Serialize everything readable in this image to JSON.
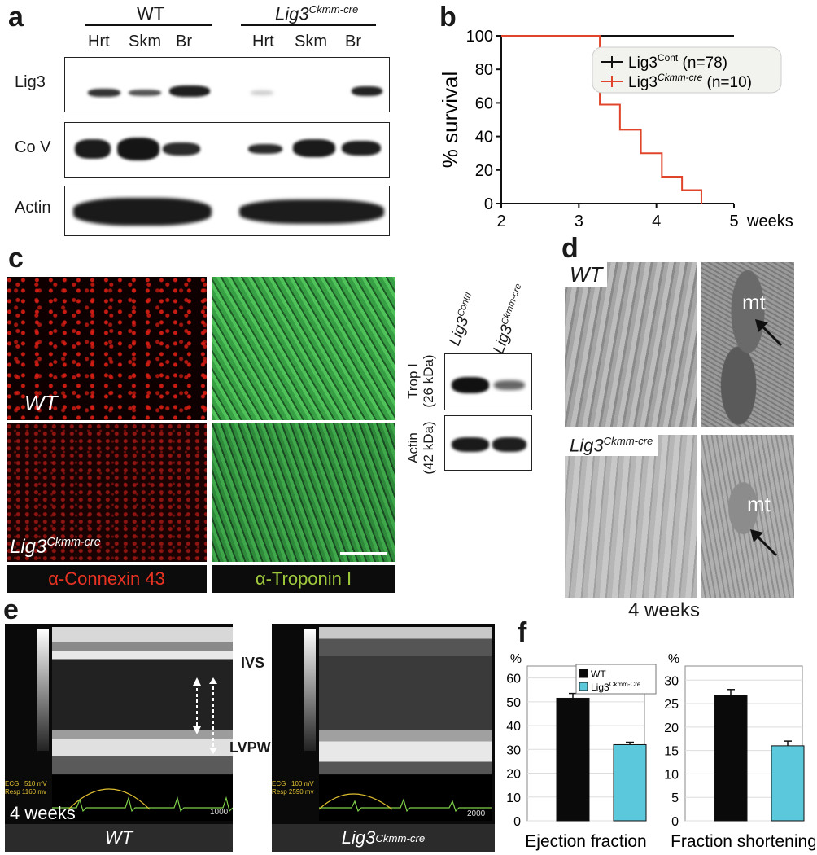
{
  "panels": {
    "a": "a",
    "b": "b",
    "c": "c",
    "d": "d",
    "e": "e",
    "f": "f"
  },
  "panel_a": {
    "group_wt": "WT",
    "group_ko_base": "Lig3",
    "group_ko_sup": "Ckmm-cre",
    "lanes": [
      "Hrt",
      "Skm",
      "Br",
      "Hrt",
      "Skm",
      "Br"
    ],
    "row_labels": [
      "Lig3",
      "Co V",
      "Actin"
    ]
  },
  "panel_c": {
    "label_wt": "WT",
    "label_ko_base": "Lig3",
    "label_ko_sup": "Ckmm-cre",
    "bar_connexin": "α-Connexin 43",
    "bar_troponin": "α-Troponin I",
    "blot_col1_base": "Lig3",
    "blot_col1_sup": "Contrl",
    "blot_col2_base": "Lig3",
    "blot_col2_sup": "Ckmm-cre",
    "blot_row1_line1": "Trop I",
    "blot_row1_line2": "(26 kDa)",
    "blot_row2_line1": "Actin",
    "blot_row2_line2": "(42 kDa)"
  },
  "panel_d": {
    "label_wt": "WT",
    "label_ko_base": "Lig3",
    "label_ko_sup": "Ckmm-cre",
    "mt": "mt",
    "footer": "4 weeks"
  },
  "panel_e": {
    "ivs": "IVS",
    "lvpw": "LVPW",
    "wt_ecg": "ECG   510 mV",
    "wt_resp": "Resp 1160 mv",
    "ko_ecg": "ECG   100 mV",
    "ko_resp": "Resp 2590 mv",
    "wt_scale": "1000",
    "ko_scale": "2000",
    "weeks": "4 weeks",
    "bar_wt": "WT",
    "bar_ko_base": "Lig3",
    "bar_ko_sup": "Ckmm-cre"
  },
  "chart_data": [
    {
      "type": "line",
      "panel": "b",
      "ylabel": "% survival",
      "xlabel": "weeks",
      "xlim": [
        2,
        5
      ],
      "ylim": [
        0,
        100
      ],
      "xticks": [
        "2",
        "3",
        "4",
        "5"
      ],
      "yticks": [
        "0",
        "20",
        "40",
        "60",
        "80",
        "100"
      ],
      "legend_position": "top-right",
      "series": [
        {
          "name": "Lig3Cont (n=78)",
          "name_base": "Lig3",
          "name_sup": "Cont",
          "name_tail": " (n=78)",
          "color": "#111111",
          "x": [
            2,
            5
          ],
          "y": [
            100,
            100
          ]
        },
        {
          "name": "Lig3Ckmm-cre (n=10)",
          "name_base": "Lig3",
          "name_sup": "Ckmm-cre",
          "name_tail": " (n=10)",
          "color": "#e0452b",
          "x": [
            2,
            3.27,
            3.27,
            3.53,
            3.53,
            3.8,
            3.8,
            4.07,
            4.07,
            4.33,
            4.33,
            4.58,
            4.58
          ],
          "y": [
            100,
            100,
            59,
            59,
            44,
            44,
            30,
            30,
            16,
            16,
            8,
            8,
            0
          ]
        }
      ]
    },
    {
      "type": "bar",
      "panel": "f",
      "title": "Ejection fraction",
      "ylabel": "%",
      "ylim": [
        0,
        65
      ],
      "yticks": [
        "0",
        "10",
        "20",
        "30",
        "40",
        "50",
        "60"
      ],
      "categories": [
        "WT",
        "Lig3Ckmm-Cre"
      ],
      "values": [
        51.5,
        32
      ],
      "errors": [
        2,
        1
      ],
      "colors": [
        "#0a0a0a",
        "#5bc8dc"
      ],
      "legend": [
        {
          "base": "WT",
          "sup": ""
        },
        {
          "base": "Lig3",
          "sup": "Ckmm-Cre"
        }
      ]
    },
    {
      "type": "bar",
      "panel": "f",
      "title": "Fraction shortening",
      "ylabel": "%",
      "ylim": [
        0,
        33
      ],
      "yticks": [
        "0",
        "5",
        "10",
        "15",
        "20",
        "25",
        "30"
      ],
      "categories": [
        "WT",
        "Lig3Ckmm-Cre"
      ],
      "values": [
        26.8,
        16
      ],
      "errors": [
        1.2,
        1
      ],
      "colors": [
        "#0a0a0a",
        "#5bc8dc"
      ]
    }
  ]
}
